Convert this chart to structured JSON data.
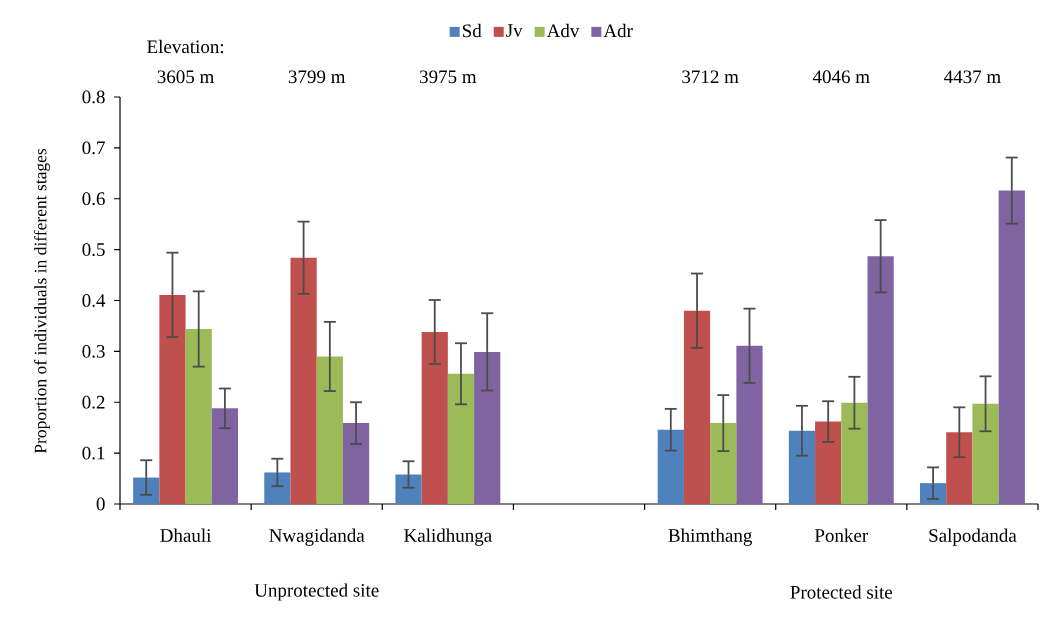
{
  "chart_data": {
    "type": "bar",
    "ylabel": "Proportion of individuals in different stages",
    "categories": [
      "Dhauli",
      "Nwagidanda",
      "Kalidhunga",
      null,
      "Bhimthang",
      "Ponker",
      "Salpodanda"
    ],
    "series": [
      {
        "name": "Sd",
        "color": "#4f81bd",
        "values": [
          0.052,
          0.062,
          0.058,
          null,
          0.146,
          0.144,
          0.041
        ],
        "errors": [
          0.034,
          0.027,
          0.026,
          null,
          0.041,
          0.049,
          0.031
        ]
      },
      {
        "name": "Jv",
        "color": "#c0504d",
        "values": [
          0.411,
          0.484,
          0.338,
          null,
          0.38,
          0.162,
          0.141
        ],
        "errors": [
          0.083,
          0.071,
          0.063,
          null,
          0.073,
          0.04,
          0.049
        ]
      },
      {
        "name": "Adv",
        "color": "#9bbb59",
        "values": [
          0.344,
          0.29,
          0.256,
          null,
          0.159,
          0.199,
          0.197
        ],
        "errors": [
          0.074,
          0.068,
          0.06,
          null,
          0.055,
          0.051,
          0.054
        ]
      },
      {
        "name": "Adr",
        "color": "#8064a2",
        "values": [
          0.188,
          0.159,
          0.299,
          null,
          0.311,
          0.487,
          0.616
        ],
        "errors": [
          0.039,
          0.041,
          0.076,
          null,
          0.073,
          0.071,
          0.065
        ]
      }
    ],
    "ylim": [
      0,
      0.8
    ],
    "yticks": [
      0,
      0.1,
      0.2,
      0.3,
      0.4,
      0.5,
      0.6,
      0.7,
      0.8
    ],
    "legend": "top",
    "annotations": [
      "Elevation:",
      "3605 m",
      "3799 m",
      "3975 m",
      "3712 m",
      "4046 m",
      "4437 m",
      "Unprotected site",
      "Protected site"
    ]
  }
}
